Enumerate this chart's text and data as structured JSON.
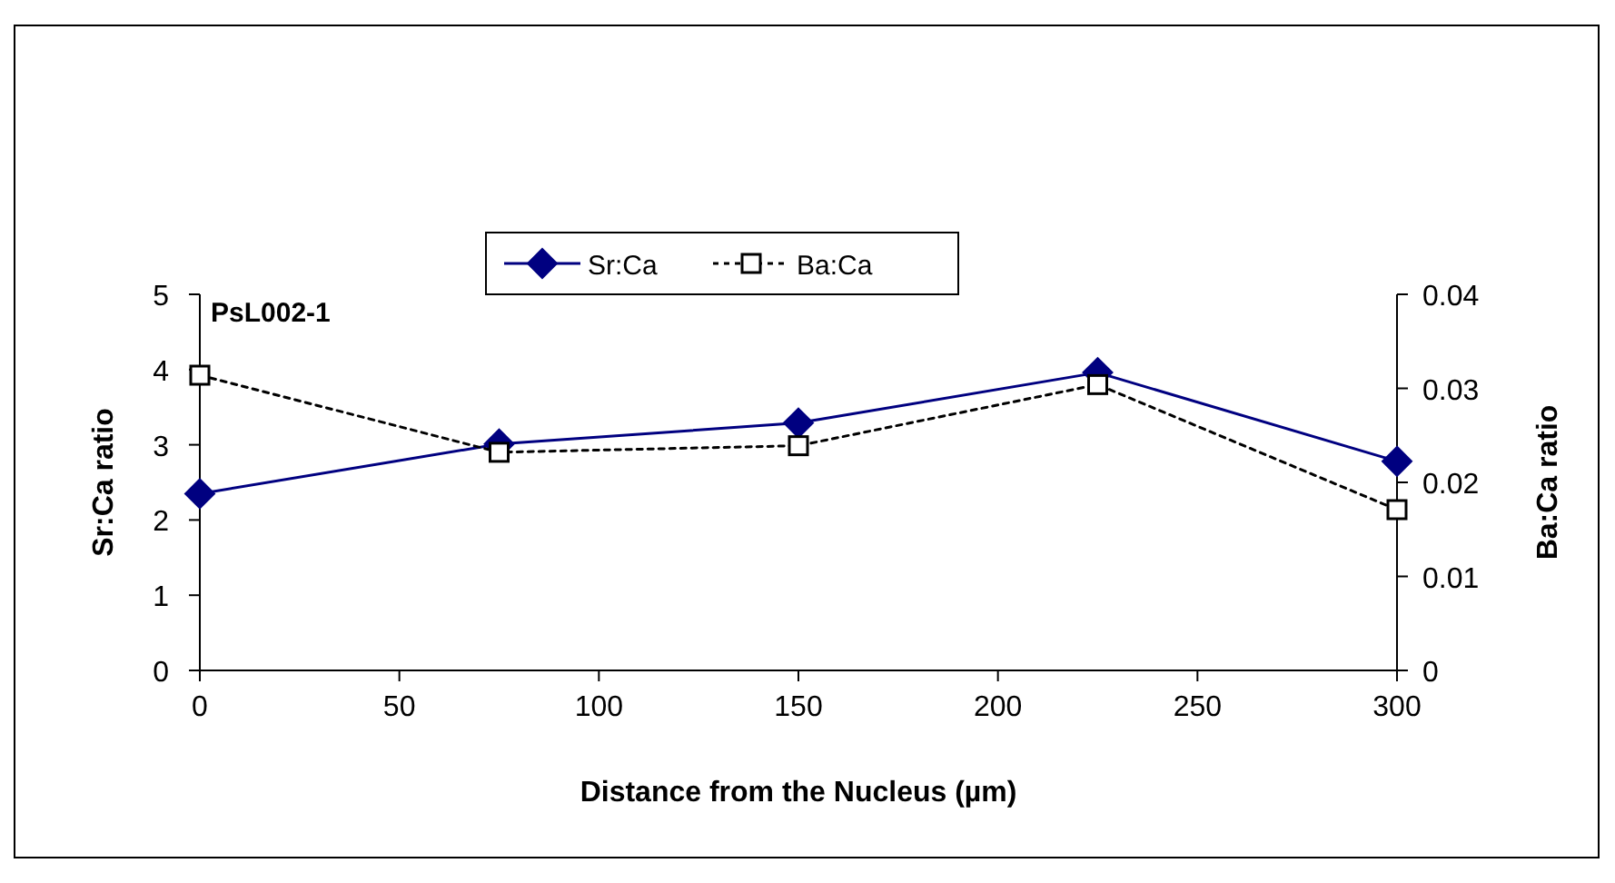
{
  "chart_data": {
    "type": "line",
    "xlabel": "Distance from the Nucleus (µm)",
    "ylabel": "Sr:Ca ratio",
    "y2label": "Ba:Ca ratio",
    "x": [
      0,
      75,
      150,
      225,
      300
    ],
    "xlim": [
      0,
      300
    ],
    "xticks": [
      0,
      50,
      100,
      150,
      200,
      250,
      300
    ],
    "ylim": [
      0,
      5
    ],
    "yticks": [
      0,
      1,
      2,
      3,
      4,
      5
    ],
    "y2lim": [
      0,
      0.04
    ],
    "y2ticks": [
      0,
      0.01,
      0.02,
      0.03,
      0.04
    ],
    "annotations": [
      "PsL002-1"
    ],
    "legend": "top",
    "grid": false,
    "series": [
      {
        "name": "Sr:Ca",
        "color": "#000080",
        "values": [
          2.35,
          3.01,
          3.29,
          3.96,
          2.78
        ],
        "marker": "diamond",
        "line_style": "solid"
      },
      {
        "name": "Ba:Ca",
        "color": "#000000",
        "values": [
          0.0314,
          0.0232,
          0.0239,
          0.0304,
          0.0171
        ],
        "axis": "y2",
        "marker": "square",
        "line_style": "dotted"
      }
    ]
  }
}
